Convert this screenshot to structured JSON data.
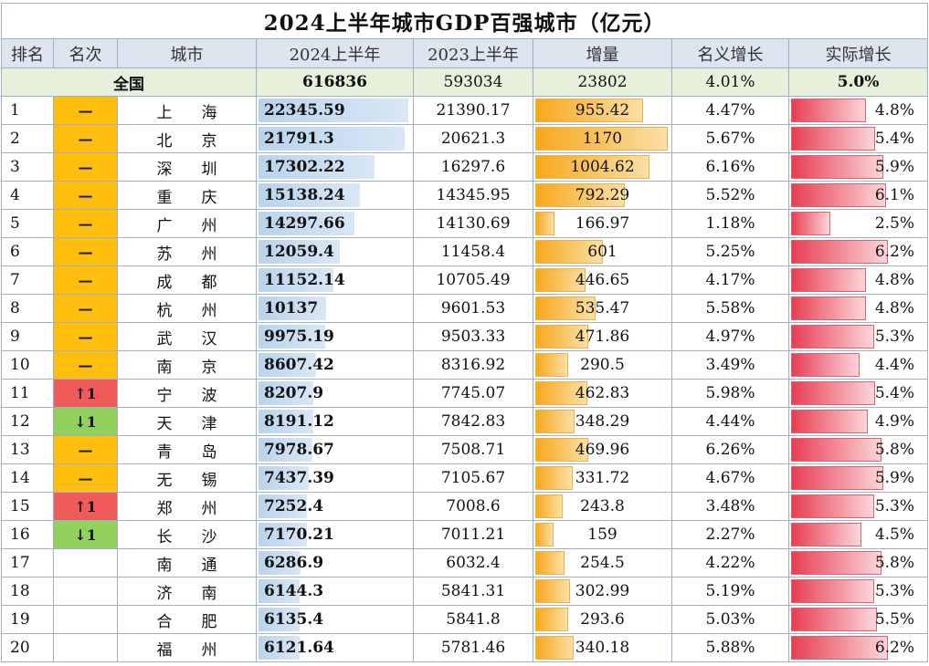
{
  "title": "2024上半年城市GDP百强城市（亿元）",
  "headers": [
    "排名",
    "名次",
    "城市",
    "2024上半年",
    "2023上半年",
    "增量",
    "名义增长",
    "实际增长"
  ],
  "national": {
    "label": "全国",
    "gdp2024": "616836",
    "gdp2023": "593034",
    "increase": "23802",
    "nominal": "4.01%",
    "real": "5.0%"
  },
  "max": {
    "gdp2024": 22345.59,
    "increase": 1170,
    "real": 6.2
  },
  "colors": {
    "same": "#ffbe0d",
    "up": "#ef5a5a",
    "down": "#8fd15a"
  },
  "rows": [
    {
      "rank": "1",
      "change": "—",
      "change_type": "same",
      "city": "上海",
      "gdp2024": "22345.59",
      "gdp2023": "21390.17",
      "increase": "955.42",
      "nominal": "4.47%",
      "real": "4.8%"
    },
    {
      "rank": "2",
      "change": "—",
      "change_type": "same",
      "city": "北京",
      "gdp2024": "21791.3",
      "gdp2023": "20621.3",
      "increase": "1170",
      "nominal": "5.67%",
      "real": "5.4%"
    },
    {
      "rank": "3",
      "change": "—",
      "change_type": "same",
      "city": "深圳",
      "gdp2024": "17302.22",
      "gdp2023": "16297.6",
      "increase": "1004.62",
      "nominal": "6.16%",
      "real": "5.9%"
    },
    {
      "rank": "4",
      "change": "—",
      "change_type": "same",
      "city": "重庆",
      "gdp2024": "15138.24",
      "gdp2023": "14345.95",
      "increase": "792.29",
      "nominal": "5.52%",
      "real": "6.1%"
    },
    {
      "rank": "5",
      "change": "—",
      "change_type": "same",
      "city": "广州",
      "gdp2024": "14297.66",
      "gdp2023": "14130.69",
      "increase": "166.97",
      "nominal": "1.18%",
      "real": "2.5%"
    },
    {
      "rank": "6",
      "change": "—",
      "change_type": "same",
      "city": "苏州",
      "gdp2024": "12059.4",
      "gdp2023": "11458.4",
      "increase": "601",
      "nominal": "5.25%",
      "real": "6.2%"
    },
    {
      "rank": "7",
      "change": "—",
      "change_type": "same",
      "city": "成都",
      "gdp2024": "11152.14",
      "gdp2023": "10705.49",
      "increase": "446.65",
      "nominal": "4.17%",
      "real": "4.8%"
    },
    {
      "rank": "8",
      "change": "—",
      "change_type": "same",
      "city": "杭州",
      "gdp2024": "10137",
      "gdp2023": "9601.53",
      "increase": "535.47",
      "nominal": "5.58%",
      "real": "4.8%"
    },
    {
      "rank": "9",
      "change": "—",
      "change_type": "same",
      "city": "武汉",
      "gdp2024": "9975.19",
      "gdp2023": "9503.33",
      "increase": "471.86",
      "nominal": "4.97%",
      "real": "5.3%"
    },
    {
      "rank": "10",
      "change": "—",
      "change_type": "same",
      "city": "南京",
      "gdp2024": "8607.42",
      "gdp2023": "8316.92",
      "increase": "290.5",
      "nominal": "3.49%",
      "real": "4.4%"
    },
    {
      "rank": "11",
      "change": "↑1",
      "change_type": "up",
      "city": "宁波",
      "gdp2024": "8207.9",
      "gdp2023": "7745.07",
      "increase": "462.83",
      "nominal": "5.98%",
      "real": "5.4%"
    },
    {
      "rank": "12",
      "change": "↓1",
      "change_type": "down",
      "city": "天津",
      "gdp2024": "8191.12",
      "gdp2023": "7842.83",
      "increase": "348.29",
      "nominal": "4.44%",
      "real": "4.9%"
    },
    {
      "rank": "13",
      "change": "—",
      "change_type": "same",
      "city": "青岛",
      "gdp2024": "7978.67",
      "gdp2023": "7508.71",
      "increase": "469.96",
      "nominal": "6.26%",
      "real": "5.8%"
    },
    {
      "rank": "14",
      "change": "—",
      "change_type": "same",
      "city": "无锡",
      "gdp2024": "7437.39",
      "gdp2023": "7105.67",
      "increase": "331.72",
      "nominal": "4.67%",
      "real": "5.9%"
    },
    {
      "rank": "15",
      "change": "↑1",
      "change_type": "up",
      "city": "郑州",
      "gdp2024": "7252.4",
      "gdp2023": "7008.6",
      "increase": "243.8",
      "nominal": "3.48%",
      "real": "5.3%"
    },
    {
      "rank": "16",
      "change": "↓1",
      "change_type": "down",
      "city": "长沙",
      "gdp2024": "7170.21",
      "gdp2023": "7011.21",
      "increase": "159",
      "nominal": "2.27%",
      "real": "4.5%"
    },
    {
      "rank": "17",
      "change": "",
      "change_type": "none",
      "city": "南通",
      "gdp2024": "6286.9",
      "gdp2023": "6032.4",
      "increase": "254.5",
      "nominal": "4.22%",
      "real": "5.8%"
    },
    {
      "rank": "18",
      "change": "",
      "change_type": "none",
      "city": "济南",
      "gdp2024": "6144.3",
      "gdp2023": "5841.31",
      "increase": "302.99",
      "nominal": "5.19%",
      "real": "5.3%"
    },
    {
      "rank": "19",
      "change": "",
      "change_type": "none",
      "city": "合肥",
      "gdp2024": "6135.4",
      "gdp2023": "5841.8",
      "increase": "293.6",
      "nominal": "5.03%",
      "real": "5.5%"
    },
    {
      "rank": "20",
      "change": "",
      "change_type": "none",
      "city": "福州",
      "gdp2024": "6121.64",
      "gdp2023": "5781.46",
      "increase": "340.18",
      "nominal": "5.88%",
      "real": "6.2%"
    }
  ]
}
